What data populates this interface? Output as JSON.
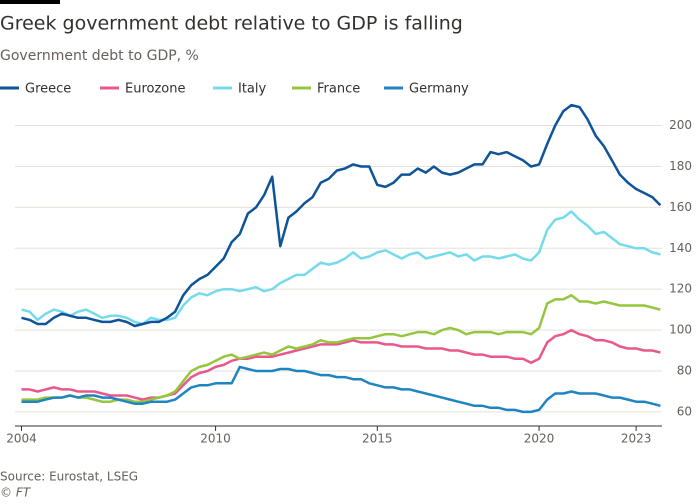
{
  "chart_data": {
    "type": "line",
    "title": "Greek government debt relative to GDP is falling",
    "subtitle": "Government debt to GDP, %",
    "source": "Source: Eurostat, LSEG",
    "credit": "© FT",
    "x": [
      2004,
      2004.25,
      2004.5,
      2004.75,
      2005,
      2005.25,
      2005.5,
      2005.75,
      2006,
      2006.25,
      2006.5,
      2006.75,
      2007,
      2007.25,
      2007.5,
      2007.75,
      2008,
      2008.25,
      2008.5,
      2008.75,
      2009,
      2009.25,
      2009.5,
      2009.75,
      2010,
      2010.25,
      2010.5,
      2010.75,
      2011,
      2011.25,
      2011.5,
      2011.75,
      2012,
      2012.25,
      2012.5,
      2012.75,
      2013,
      2013.25,
      2013.5,
      2013.75,
      2014,
      2014.25,
      2014.5,
      2014.75,
      2015,
      2015.25,
      2015.5,
      2015.75,
      2016,
      2016.25,
      2016.5,
      2016.75,
      2017,
      2017.25,
      2017.5,
      2017.75,
      2018,
      2018.25,
      2018.5,
      2018.75,
      2019,
      2019.25,
      2019.5,
      2019.75,
      2020,
      2020.25,
      2020.5,
      2020.75,
      2021,
      2021.25,
      2021.5,
      2021.75,
      2022,
      2022.25,
      2022.5,
      2022.75,
      2023,
      2023.25,
      2023.5,
      2023.75
    ],
    "series": [
      {
        "name": "Greece",
        "color": "#0f5499",
        "values": [
          106,
          105,
          103,
          103,
          106,
          108,
          107,
          106,
          106,
          105,
          104,
          104,
          105,
          104,
          102,
          103,
          104,
          104,
          106,
          109,
          117,
          122,
          125,
          127,
          131,
          135,
          143,
          147,
          157,
          160,
          166,
          175,
          141,
          155,
          158,
          162,
          165,
          172,
          174,
          178,
          179,
          181,
          180,
          180,
          171,
          170,
          172,
          176,
          176,
          179,
          177,
          180,
          177,
          176,
          177,
          179,
          181,
          181,
          187,
          186,
          187,
          185,
          183,
          180,
          181,
          191,
          200,
          207,
          210,
          209,
          203,
          195,
          190,
          183,
          176,
          172,
          169,
          167,
          165,
          161
        ]
      },
      {
        "name": "Eurozone",
        "color": "#e9588c",
        "values": [
          71,
          71,
          70,
          71,
          72,
          71,
          71,
          70,
          70,
          70,
          69,
          68,
          68,
          68,
          67,
          66,
          67,
          67,
          68,
          69,
          73,
          77,
          79,
          80,
          82,
          83,
          85,
          86,
          86,
          87,
          87,
          87,
          88,
          89,
          90,
          91,
          92,
          93,
          93,
          93,
          94,
          95,
          94,
          94,
          94,
          93,
          93,
          92,
          92,
          92,
          91,
          91,
          91,
          90,
          90,
          89,
          88,
          88,
          87,
          87,
          87,
          86,
          86,
          84,
          86,
          94,
          97,
          98,
          100,
          98,
          97,
          95,
          95,
          94,
          92,
          91,
          91,
          90,
          90,
          89
        ]
      },
      {
        "name": "Italy",
        "color": "#75dbea",
        "values": [
          110,
          109,
          105,
          108,
          110,
          109,
          107,
          109,
          110,
          108,
          106,
          107,
          107,
          106,
          104,
          103,
          106,
          105,
          105,
          106,
          112,
          116,
          118,
          117,
          119,
          120,
          120,
          119,
          120,
          121,
          119,
          120,
          123,
          125,
          127,
          127,
          130,
          133,
          132,
          133,
          135,
          138,
          135,
          136,
          138,
          139,
          137,
          135,
          137,
          138,
          135,
          136,
          137,
          138,
          136,
          137,
          134,
          136,
          136,
          135,
          136,
          137,
          135,
          134,
          138,
          149,
          154,
          155,
          158,
          154,
          151,
          147,
          148,
          145,
          142,
          141,
          140,
          140,
          138,
          137
        ]
      },
      {
        "name": "France",
        "color": "#96c63f",
        "values": [
          66,
          66,
          66,
          67,
          67,
          67,
          68,
          67,
          67,
          66,
          65,
          65,
          66,
          66,
          65,
          65,
          66,
          67,
          68,
          70,
          75,
          80,
          82,
          83,
          85,
          87,
          88,
          86,
          87,
          88,
          89,
          88,
          90,
          92,
          91,
          92,
          93,
          95,
          94,
          94,
          95,
          96,
          96,
          96,
          97,
          98,
          98,
          97,
          98,
          99,
          99,
          98,
          100,
          101,
          100,
          98,
          99,
          99,
          99,
          98,
          99,
          99,
          99,
          98,
          101,
          113,
          115,
          115,
          117,
          114,
          114,
          113,
          114,
          113,
          112,
          112,
          112,
          112,
          111,
          110
        ]
      },
      {
        "name": "Germany",
        "color": "#1f84c2",
        "values": [
          65,
          65,
          65,
          66,
          67,
          67,
          68,
          67,
          68,
          68,
          67,
          67,
          66,
          65,
          64,
          64,
          65,
          65,
          65,
          66,
          69,
          72,
          73,
          73,
          74,
          74,
          74,
          82,
          81,
          80,
          80,
          80,
          81,
          81,
          80,
          80,
          79,
          78,
          78,
          77,
          77,
          76,
          76,
          74,
          73,
          72,
          72,
          71,
          71,
          70,
          69,
          68,
          67,
          66,
          65,
          64,
          63,
          63,
          62,
          62,
          61,
          61,
          60,
          60,
          61,
          66,
          69,
          69,
          70,
          69,
          69,
          69,
          68,
          67,
          67,
          66,
          65,
          65,
          64,
          63
        ]
      }
    ],
    "xlim": [
      2003.8,
      2023.8
    ],
    "xticks": [
      2004,
      2010,
      2015,
      2020,
      2023
    ],
    "ylim": [
      58,
      212
    ],
    "yticks": [
      60,
      80,
      100,
      120,
      140,
      160,
      180,
      200
    ],
    "grid": true
  }
}
